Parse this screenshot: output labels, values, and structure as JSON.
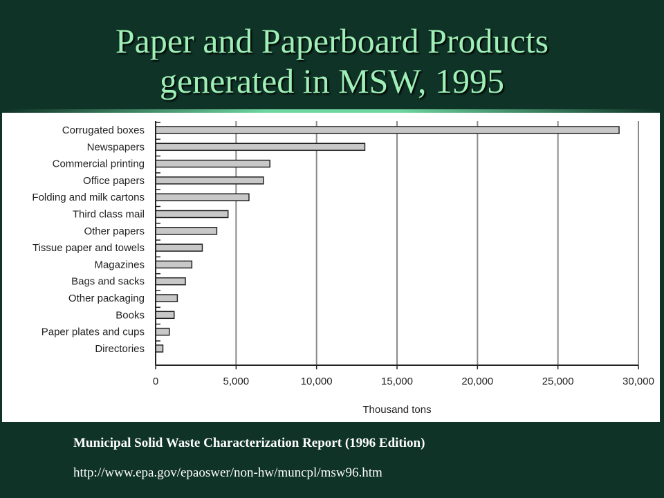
{
  "page": {
    "title_line1": "Paper and Paperboard Products",
    "title_line2": "generated in MSW, 1995",
    "source": "Municipal Solid Waste Characterization Report (1996 Edition)",
    "url": "http://www.epa.gov/epaoswer/non-hw/muncpl/msw96.htm"
  },
  "colors": {
    "background": "#0f3327",
    "title": "#9fefb7",
    "bar_fill": "#c8c8c8",
    "bar_stroke": "#222222",
    "grid": "#8a8a8a"
  },
  "chart_data": {
    "type": "bar",
    "orientation": "horizontal",
    "title": "",
    "xlabel": "Thousand tons",
    "ylabel": "",
    "xlim": [
      0,
      30000
    ],
    "grid": "vertical",
    "ticks": [
      0,
      5000,
      10000,
      15000,
      20000,
      25000,
      30000
    ],
    "tick_labels": [
      "0",
      "5,000",
      "10,000",
      "15,000",
      "20,000",
      "25,000",
      "30,000"
    ],
    "categories": [
      "Corrugated boxes",
      "Newspapers",
      "Commercial printing",
      "Office papers",
      "Folding and milk cartons",
      "Third class mail",
      "Other papers",
      "Tissue paper and towels",
      "Magazines",
      "Bags and sacks",
      "Other packaging",
      "Books",
      "Paper plates and cups",
      "Directories"
    ],
    "values": [
      28800,
      13000,
      7100,
      6700,
      5800,
      4500,
      3800,
      2900,
      2250,
      1850,
      1350,
      1150,
      850,
      450
    ]
  }
}
